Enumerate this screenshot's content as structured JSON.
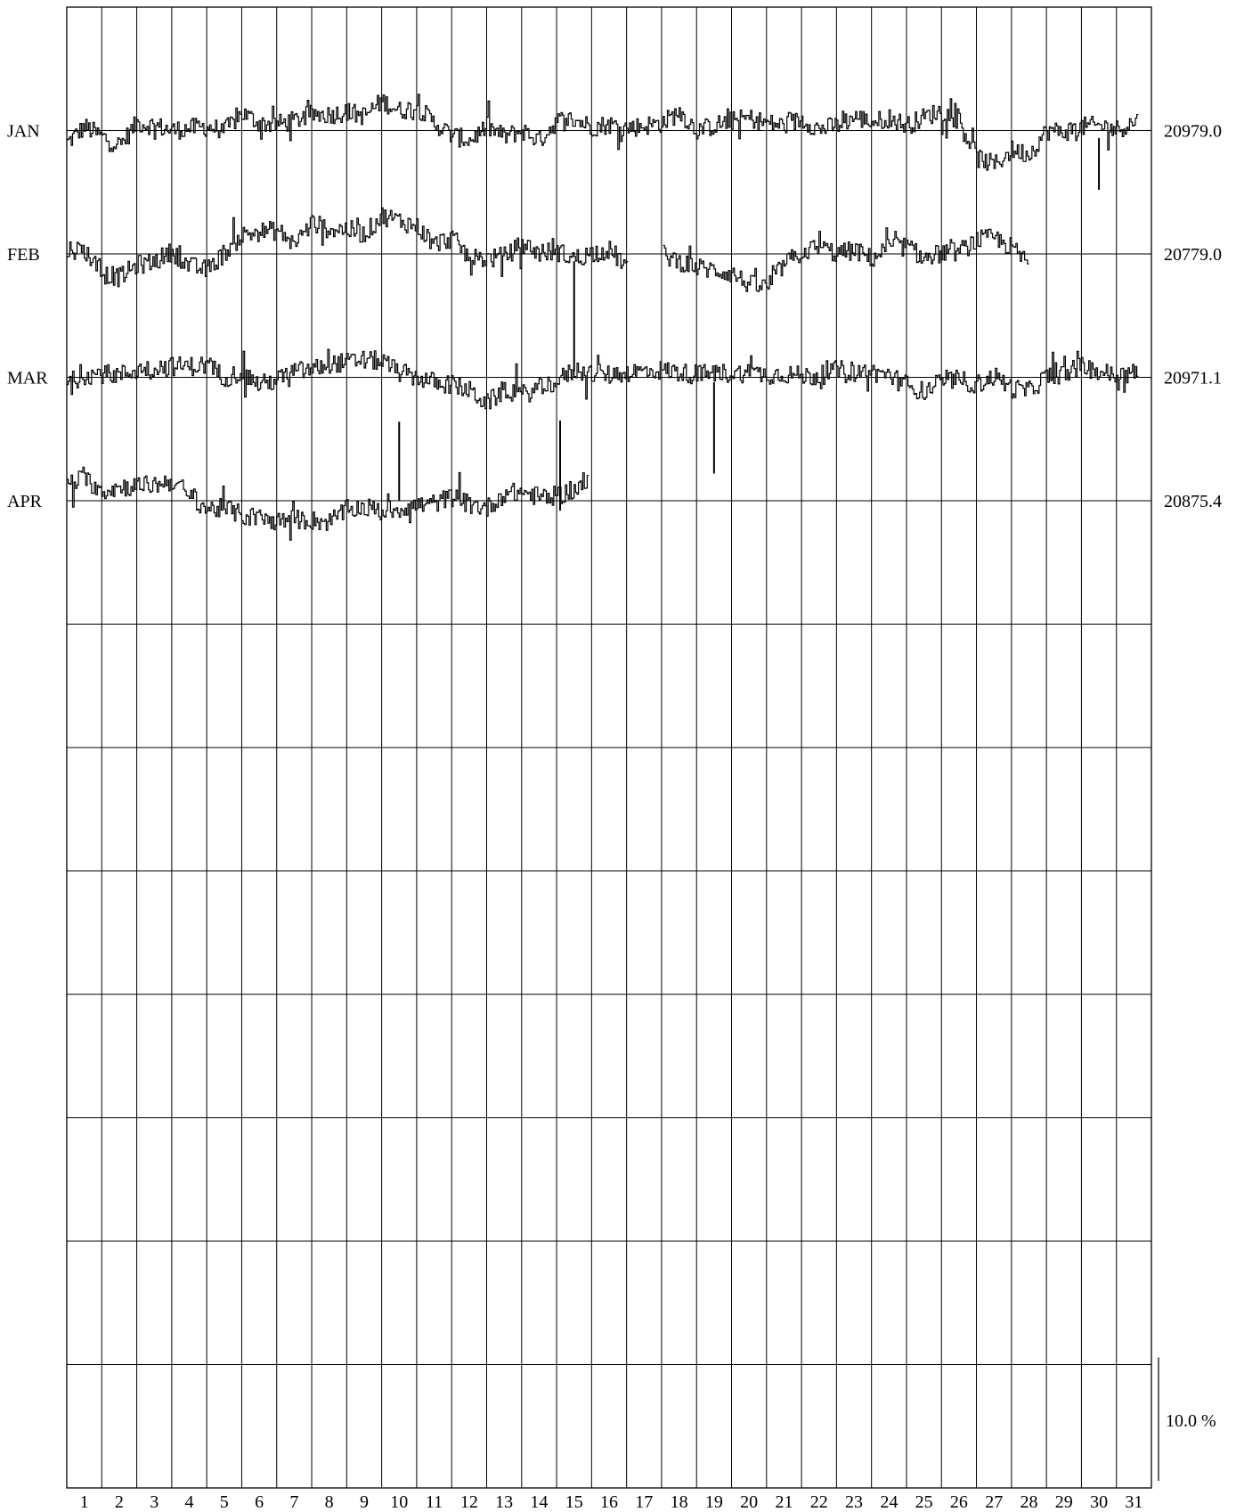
{
  "chart_data": {
    "type": "line",
    "title": "",
    "xlabel": "",
    "ylabel": "",
    "x_categories": [
      "1",
      "2",
      "3",
      "4",
      "5",
      "6",
      "7",
      "8",
      "9",
      "10",
      "11",
      "12",
      "13",
      "14",
      "15",
      "16",
      "17",
      "18",
      "19",
      "20",
      "21",
      "22",
      "23",
      "24",
      "25",
      "26",
      "27",
      "28",
      "29",
      "30",
      "31"
    ],
    "rows": 12,
    "grid": true,
    "scale_label": "10.0 %",
    "scale_percent": 10.0,
    "series": [
      {
        "name": "JAN",
        "base_value": "20979.0",
        "days_available": [
          1,
          31.6
        ],
        "profile": [
          [
            1,
            -1.0
          ],
          [
            1.5,
            0.3
          ],
          [
            2,
            -0.5
          ],
          [
            2.5,
            -1.2
          ],
          [
            3,
            0.6
          ],
          [
            3.5,
            0.4
          ],
          [
            4,
            0.0
          ],
          [
            4.5,
            0.2
          ],
          [
            5,
            0.3
          ],
          [
            5.5,
            0.0
          ],
          [
            6,
            1.4
          ],
          [
            6.5,
            0.6
          ],
          [
            7,
            0.5
          ],
          [
            7.5,
            0.8
          ],
          [
            8,
            1.3
          ],
          [
            8.5,
            1.3
          ],
          [
            9,
            1.5
          ],
          [
            9.5,
            1.2
          ],
          [
            10,
            2.4
          ],
          [
            10.5,
            1.6
          ],
          [
            11,
            1.9
          ],
          [
            11.5,
            0.6
          ],
          [
            12,
            -0.4
          ],
          [
            12.5,
            -0.8
          ],
          [
            13,
            0.3
          ],
          [
            13.5,
            -0.5
          ],
          [
            14,
            0.0
          ],
          [
            14.5,
            -0.8
          ],
          [
            15,
            0.8
          ],
          [
            15.5,
            0.9
          ],
          [
            16,
            0.3
          ],
          [
            16.5,
            0.5
          ],
          [
            17,
            0.2
          ],
          [
            17.5,
            0.4
          ],
          [
            18,
            0.6
          ],
          [
            18.5,
            1.5
          ],
          [
            19,
            0.0
          ],
          [
            19.5,
            0.4
          ],
          [
            20,
            0.8
          ],
          [
            20.5,
            1.0
          ],
          [
            21,
            0.6
          ],
          [
            21.5,
            0.4
          ],
          [
            22,
            0.9
          ],
          [
            22.5,
            0.1
          ],
          [
            23,
            0.4
          ],
          [
            23.5,
            1.1
          ],
          [
            24,
            0.7
          ],
          [
            24.5,
            1.0
          ],
          [
            25,
            0.4
          ],
          [
            25.5,
            1.1
          ],
          [
            26,
            1.6
          ],
          [
            26.5,
            0.8
          ],
          [
            27,
            -2.2
          ],
          [
            27.5,
            -2.8
          ],
          [
            28,
            -1.6
          ],
          [
            28.5,
            -1.9
          ],
          [
            29,
            0.0
          ],
          [
            29.5,
            -0.1
          ],
          [
            30,
            0.3
          ],
          [
            30.5,
            0.4
          ],
          [
            31,
            0.1
          ],
          [
            31.6,
            0.8
          ]
        ]
      },
      {
        "name": "FEB",
        "base_value": "20779.0",
        "days_available": [
          1,
          29.3
        ],
        "profile": [
          [
            1,
            0.4
          ],
          [
            1.5,
            0.3
          ],
          [
            2,
            -1.6
          ],
          [
            2.5,
            -1.9
          ],
          [
            3,
            -0.9
          ],
          [
            3.5,
            -0.6
          ],
          [
            4,
            0.2
          ],
          [
            4.5,
            -1.0
          ],
          [
            5,
            -1.3
          ],
          [
            5.5,
            0.1
          ],
          [
            6,
            1.5
          ],
          [
            6.5,
            1.8
          ],
          [
            7,
            1.9
          ],
          [
            7.5,
            0.9
          ],
          [
            8,
            2.5
          ],
          [
            8.5,
            2.0
          ],
          [
            9,
            2.0
          ],
          [
            9.5,
            1.6
          ],
          [
            10,
            3.1
          ],
          [
            10.5,
            2.7
          ],
          [
            11,
            2.2
          ],
          [
            11.5,
            0.8
          ],
          [
            12,
            1.3
          ],
          [
            12.5,
            -0.3
          ],
          [
            13,
            -0.4
          ],
          [
            13.5,
            -0.2
          ],
          [
            14,
            0.8
          ],
          [
            14.5,
            0.1
          ],
          [
            15,
            0.2
          ],
          [
            15.5,
            -0.4
          ],
          [
            16,
            0.1
          ],
          [
            16.5,
            0.3
          ],
          [
            17,
            -1.0
          ],
          [
            17.5,
            null
          ],
          [
            18,
            0.0
          ],
          [
            18.5,
            -0.6
          ],
          [
            19,
            -1.1
          ],
          [
            19.5,
            -1.3
          ],
          [
            20,
            -1.6
          ],
          [
            20.5,
            -2.5
          ],
          [
            21,
            -2.7
          ],
          [
            21.5,
            -0.8
          ],
          [
            22,
            0.1
          ],
          [
            22.5,
            0.6
          ],
          [
            23,
            0.0
          ],
          [
            23.5,
            0.3
          ],
          [
            24,
            -0.4
          ],
          [
            24.5,
            0.6
          ],
          [
            25,
            0.6
          ],
          [
            25.5,
            -0.4
          ],
          [
            26,
            0.1
          ],
          [
            26.5,
            0.2
          ],
          [
            27,
            1.1
          ],
          [
            27.5,
            1.3
          ],
          [
            28,
            0.5
          ],
          [
            28.5,
            -0.9
          ],
          [
            29,
            null
          ],
          [
            29.3,
            0.6
          ]
        ]
      },
      {
        "name": "MAR",
        "base_value": "20971.1",
        "days_available": [
          1,
          31.6
        ],
        "profile": [
          [
            1,
            -0.5
          ],
          [
            1.5,
            0.2
          ],
          [
            2,
            0.3
          ],
          [
            2.5,
            0.2
          ],
          [
            3,
            0.6
          ],
          [
            3.5,
            0.8
          ],
          [
            4,
            0.9
          ],
          [
            4.5,
            0.9
          ],
          [
            5,
            1.0
          ],
          [
            5.5,
            0.0
          ],
          [
            6,
            0.4
          ],
          [
            6.5,
            -0.6
          ],
          [
            7,
            -0.2
          ],
          [
            7.5,
            0.5
          ],
          [
            8,
            0.6
          ],
          [
            8.5,
            1.1
          ],
          [
            9,
            1.2
          ],
          [
            9.5,
            1.4
          ],
          [
            10,
            1.3
          ],
          [
            10.5,
            0.4
          ],
          [
            11,
            0.0
          ],
          [
            11.5,
            -0.4
          ],
          [
            12,
            -0.6
          ],
          [
            12.5,
            -1.1
          ],
          [
            13,
            -2.1
          ],
          [
            13.5,
            -1.0
          ],
          [
            14,
            -1.4
          ],
          [
            14.5,
            -0.9
          ],
          [
            15,
            -0.3
          ],
          [
            15.5,
            0.6
          ],
          [
            16,
            0.3
          ],
          [
            16.5,
            0.2
          ],
          [
            17,
            0.4
          ],
          [
            17.5,
            0.5
          ],
          [
            18,
            0.6
          ],
          [
            18.5,
            0.4
          ],
          [
            19,
            0.2
          ],
          [
            19.5,
            0.4
          ],
          [
            20,
            0.3
          ],
          [
            20.5,
            0.4
          ],
          [
            21,
            0.2
          ],
          [
            21.5,
            0.3
          ],
          [
            22,
            0.1
          ],
          [
            22.5,
            0.1
          ],
          [
            23,
            0.6
          ],
          [
            23.5,
            0.5
          ],
          [
            24,
            0.4
          ],
          [
            24.5,
            0.2
          ],
          [
            25,
            -0.6
          ],
          [
            25.5,
            -1.2
          ],
          [
            26,
            -0.3
          ],
          [
            26.5,
            -0.2
          ],
          [
            27,
            -0.6
          ],
          [
            27.5,
            0.1
          ],
          [
            28,
            -0.9
          ],
          [
            28.5,
            -1.1
          ],
          [
            29,
            0.1
          ],
          [
            29.5,
            0.3
          ],
          [
            30,
            0.9
          ],
          [
            30.5,
            0.5
          ],
          [
            31,
            0.1
          ],
          [
            31.6,
            0.4
          ]
        ]
      },
      {
        "name": "APR",
        "base_value": "20875.4",
        "days_available": [
          1,
          15.9
        ],
        "profile": [
          [
            1,
            1.4
          ],
          [
            1.5,
            1.8
          ],
          [
            2,
            0.8
          ],
          [
            2.5,
            1.1
          ],
          [
            3,
            1.2
          ],
          [
            3.5,
            1.3
          ],
          [
            4,
            1.6
          ],
          [
            4.5,
            0.5
          ],
          [
            5,
            -0.7
          ],
          [
            5.5,
            -0.6
          ],
          [
            6,
            -1.2
          ],
          [
            6.5,
            -1.4
          ],
          [
            7,
            -1.7
          ],
          [
            7.5,
            -1.5
          ],
          [
            8,
            -1.6
          ],
          [
            8.5,
            -1.7
          ],
          [
            9,
            -0.7
          ],
          [
            9.5,
            -0.5
          ],
          [
            10,
            -0.9
          ],
          [
            10.5,
            -0.6
          ],
          [
            11,
            -0.4
          ],
          [
            11.5,
            -0.2
          ],
          [
            12,
            0.3
          ],
          [
            12.5,
            -0.3
          ],
          [
            13,
            -0.6
          ],
          [
            13.5,
            0.6
          ],
          [
            14,
            0.7
          ],
          [
            14.5,
            0.3
          ],
          [
            15,
            0.4
          ],
          [
            15.5,
            0.9
          ],
          [
            15.9,
            1.5
          ]
        ],
        "spikes": [
          [
            10.5,
            6.4
          ]
        ]
      }
    ],
    "spikes_between_rows": [
      {
        "series": "FEB",
        "day": 15.5,
        "from_pct": -0.6,
        "to_pct": -9.5
      },
      {
        "series": "MAR",
        "day": 19.5,
        "from_pct": -0.4,
        "to_pct": -7.8
      },
      {
        "series": "JAN",
        "day": 30.5,
        "from_pct": -0.6,
        "to_pct": -4.8
      },
      {
        "series": "APR",
        "day": 15.1,
        "from_pct": -0.8,
        "to_pct": 6.5
      }
    ],
    "colors": {
      "line": "#000000",
      "grid": "#000000",
      "background": "#ffffff"
    }
  }
}
